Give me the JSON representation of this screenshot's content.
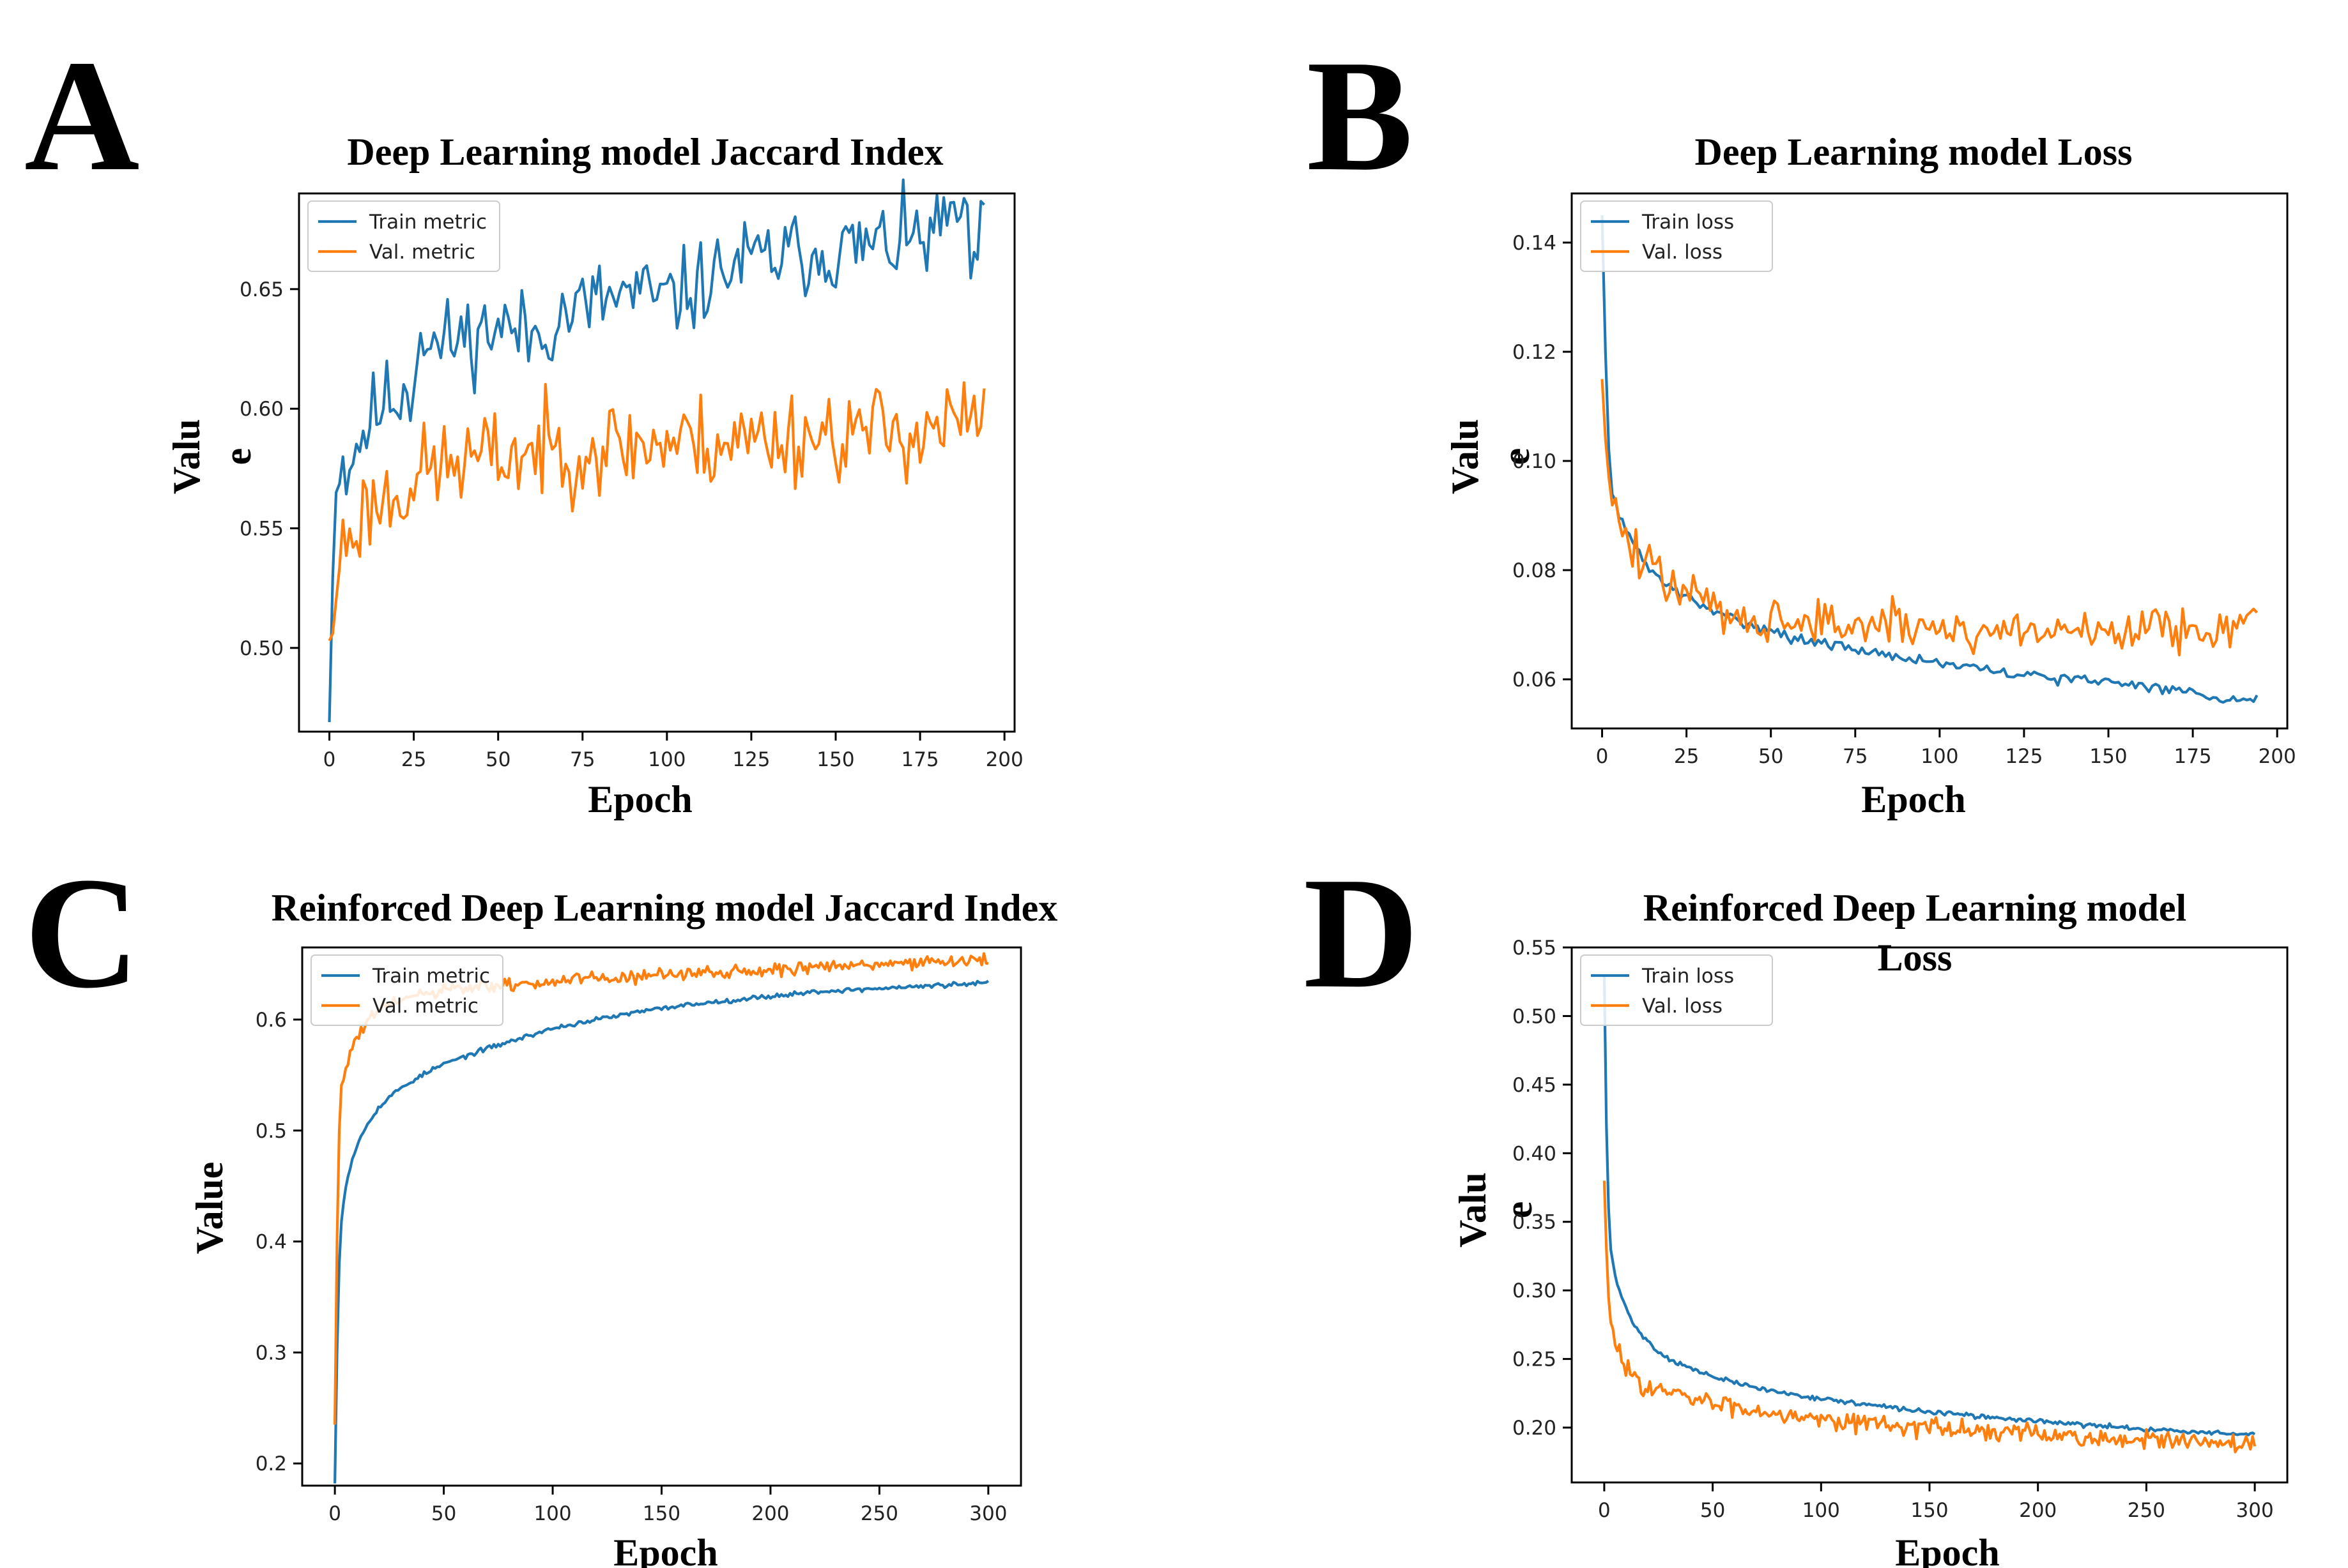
{
  "panels": [
    {
      "letter": "A",
      "title": "Deep Learning model Jaccard Index",
      "title_lines": [
        "Deep Learning model Jaccard Index"
      ],
      "ylabel_lines": [
        "Valu",
        "e"
      ],
      "xlabel": "Epoch",
      "legend": [
        "Train metric",
        "Val. metric"
      ]
    },
    {
      "letter": "B",
      "title": "Deep Learning model Loss",
      "title_lines": [
        "Deep Learning model Loss"
      ],
      "ylabel_lines": [
        "Valu",
        "e"
      ],
      "xlabel": "Epoch",
      "legend": [
        "Train loss",
        "Val. loss"
      ]
    },
    {
      "letter": "C",
      "title": "Reinforced Deep Learning model Jaccard Index",
      "title_lines": [
        "Reinforced Deep Learning model Jaccard Index"
      ],
      "ylabel_lines": [
        "Value"
      ],
      "xlabel": "Epoch",
      "legend": [
        "Train metric",
        "Val. metric"
      ]
    },
    {
      "letter": "D",
      "title": "Reinforced Deep Learning model Loss",
      "title_lines": [
        "Reinforced Deep Learning model",
        "Loss"
      ],
      "ylabel_lines": [
        "Valu",
        "e"
      ],
      "xlabel": "Epoch",
      "legend": [
        "Train loss",
        "Val. loss"
      ]
    }
  ],
  "colors": {
    "train": "#1f77b4",
    "val": "#ff7f0e",
    "axis": "#000000",
    "text": "#000000"
  },
  "chart_data": [
    {
      "type": "line",
      "title": "Deep Learning model Jaccard Index",
      "xlabel": "Epoch",
      "ylabel": "Value",
      "xlim": [
        -9,
        203
      ],
      "ylim": [
        0.465,
        0.69
      ],
      "xticks": [
        0,
        25,
        50,
        75,
        100,
        125,
        150,
        175,
        200
      ],
      "yticks": [
        0.5,
        0.55,
        0.6,
        0.65
      ],
      "ytick_labels": [
        "0.50",
        "0.55",
        "0.60",
        "0.65"
      ],
      "grid": false,
      "legend_position": "upper-left",
      "series": [
        {
          "name": "Train metric",
          "x": [
            0,
            1,
            2,
            3,
            5,
            8,
            12,
            16,
            20,
            25,
            27,
            30,
            35,
            40,
            45,
            50,
            60,
            70,
            80,
            90,
            100,
            110,
            120,
            130,
            140,
            150,
            160,
            170,
            180,
            186,
            190,
            194
          ],
          "y": [
            0.469,
            0.53,
            0.565,
            0.58,
            0.575,
            0.585,
            0.595,
            0.603,
            0.605,
            0.61,
            0.637,
            0.625,
            0.628,
            0.63,
            0.632,
            0.635,
            0.63,
            0.64,
            0.645,
            0.648,
            0.645,
            0.652,
            0.66,
            0.663,
            0.665,
            0.666,
            0.668,
            0.67,
            0.672,
            0.685,
            0.66,
            0.673
          ],
          "noise": 0.009,
          "seed": 11
        },
        {
          "name": "Val. metric",
          "x": [
            0,
            1,
            2,
            3,
            5,
            8,
            12,
            16,
            20,
            25,
            30,
            40,
            50,
            60,
            70,
            80,
            90,
            100,
            110,
            120,
            130,
            140,
            150,
            160,
            170,
            180,
            190,
            194
          ],
          "y": [
            0.503,
            0.506,
            0.52,
            0.54,
            0.545,
            0.552,
            0.56,
            0.562,
            0.565,
            0.57,
            0.575,
            0.578,
            0.58,
            0.582,
            0.583,
            0.584,
            0.585,
            0.586,
            0.586,
            0.587,
            0.588,
            0.589,
            0.59,
            0.59,
            0.591,
            0.593,
            0.594,
            0.596
          ],
          "noise": 0.01,
          "seed": 23
        }
      ]
    },
    {
      "type": "line",
      "title": "Deep Learning model Loss",
      "xlabel": "Epoch",
      "ylabel": "Value",
      "xlim": [
        -9,
        203
      ],
      "ylim": [
        0.051,
        0.149
      ],
      "xticks": [
        0,
        25,
        50,
        75,
        100,
        125,
        150,
        175,
        200
      ],
      "yticks": [
        0.06,
        0.08,
        0.1,
        0.12,
        0.14
      ],
      "ytick_labels": [
        "0.06",
        "0.08",
        "0.10",
        "0.12",
        "0.14"
      ],
      "grid": false,
      "legend_position": "upper-left",
      "series": [
        {
          "name": "Train loss",
          "x": [
            0,
            1,
            2,
            3,
            5,
            8,
            12,
            16,
            20,
            25,
            30,
            40,
            50,
            60,
            70,
            80,
            90,
            100,
            110,
            120,
            130,
            140,
            150,
            160,
            170,
            180,
            190,
            194
          ],
          "y": [
            0.145,
            0.12,
            0.102,
            0.095,
            0.09,
            0.086,
            0.082,
            0.079,
            0.077,
            0.075,
            0.073,
            0.071,
            0.069,
            0.067,
            0.066,
            0.065,
            0.064,
            0.063,
            0.062,
            0.061,
            0.0605,
            0.06,
            0.0595,
            0.059,
            0.058,
            0.057,
            0.056,
            0.0575
          ],
          "noise": 0.0005,
          "seed": 31
        },
        {
          "name": "Val. loss",
          "x": [
            0,
            1,
            2,
            3,
            5,
            8,
            12,
            16,
            20,
            25,
            30,
            40,
            50,
            60,
            70,
            80,
            90,
            100,
            110,
            120,
            130,
            140,
            150,
            160,
            170,
            180,
            190,
            194
          ],
          "y": [
            0.115,
            0.104,
            0.097,
            0.095,
            0.088,
            0.085,
            0.081,
            0.079,
            0.078,
            0.076,
            0.074,
            0.072,
            0.071,
            0.0705,
            0.07,
            0.07,
            0.0695,
            0.0695,
            0.069,
            0.069,
            0.069,
            0.069,
            0.069,
            0.0695,
            0.0695,
            0.07,
            0.07,
            0.07
          ],
          "noise": 0.0022,
          "seed": 47
        }
      ]
    },
    {
      "type": "line",
      "title": "Reinforced Deep Learning model Jaccard Index",
      "xlabel": "Epoch",
      "ylabel": "Value",
      "xlim": [
        -15,
        315
      ],
      "ylim": [
        0.18,
        0.665
      ],
      "xticks": [
        0,
        50,
        100,
        150,
        200,
        250,
        300
      ],
      "yticks": [
        0.2,
        0.3,
        0.4,
        0.5,
        0.6
      ],
      "ytick_labels": [
        "0.2",
        "0.3",
        "0.4",
        "0.5",
        "0.6"
      ],
      "grid": false,
      "legend_position": "upper-left",
      "series": [
        {
          "name": "Train metric",
          "x": [
            0,
            1,
            2,
            3,
            5,
            8,
            12,
            16,
            20,
            25,
            30,
            40,
            50,
            60,
            70,
            80,
            90,
            100,
            120,
            140,
            160,
            180,
            200,
            220,
            240,
            260,
            280,
            300
          ],
          "y": [
            0.182,
            0.3,
            0.38,
            0.42,
            0.45,
            0.475,
            0.495,
            0.51,
            0.52,
            0.53,
            0.538,
            0.55,
            0.56,
            0.567,
            0.574,
            0.58,
            0.586,
            0.592,
            0.6,
            0.607,
            0.613,
            0.617,
            0.621,
            0.625,
            0.627,
            0.629,
            0.631,
            0.633
          ],
          "noise": 0.001,
          "seed": 53
        },
        {
          "name": "Val. metric",
          "x": [
            0,
            1,
            2,
            3,
            5,
            8,
            12,
            16,
            20,
            25,
            30,
            40,
            50,
            60,
            80,
            100,
            120,
            140,
            160,
            180,
            200,
            220,
            240,
            260,
            280,
            300
          ],
          "y": [
            0.235,
            0.4,
            0.5,
            0.54,
            0.555,
            0.575,
            0.59,
            0.6,
            0.608,
            0.613,
            0.618,
            0.622,
            0.626,
            0.628,
            0.631,
            0.634,
            0.637,
            0.639,
            0.641,
            0.643,
            0.645,
            0.647,
            0.649,
            0.651,
            0.652,
            0.654
          ],
          "noise": 0.003,
          "seed": 61
        }
      ]
    },
    {
      "type": "line",
      "title": "Reinforced Deep Learning model Loss",
      "xlabel": "Epoch",
      "ylabel": "Value",
      "xlim": [
        -15,
        315
      ],
      "ylim": [
        0.16,
        0.55
      ],
      "xticks": [
        0,
        50,
        100,
        150,
        200,
        250,
        300
      ],
      "yticks": [
        0.2,
        0.25,
        0.3,
        0.35,
        0.4,
        0.45,
        0.5,
        0.55
      ],
      "ytick_labels": [
        "0.20",
        "0.25",
        "0.30",
        "0.35",
        "0.40",
        "0.45",
        "0.50",
        "0.55"
      ],
      "grid": false,
      "legend_position": "upper-left",
      "series": [
        {
          "name": "Train loss",
          "x": [
            0,
            1,
            2,
            3,
            5,
            8,
            12,
            16,
            20,
            25,
            30,
            40,
            50,
            60,
            70,
            80,
            100,
            120,
            140,
            160,
            180,
            200,
            220,
            240,
            260,
            280,
            300
          ],
          "y": [
            0.53,
            0.42,
            0.36,
            0.33,
            0.31,
            0.295,
            0.28,
            0.27,
            0.263,
            0.255,
            0.25,
            0.243,
            0.237,
            0.233,
            0.229,
            0.226,
            0.221,
            0.217,
            0.213,
            0.21,
            0.207,
            0.205,
            0.202,
            0.2,
            0.198,
            0.196,
            0.195
          ],
          "noise": 0.0008,
          "seed": 71
        },
        {
          "name": "Val. loss",
          "x": [
            0,
            1,
            2,
            3,
            5,
            8,
            12,
            16,
            20,
            25,
            30,
            40,
            50,
            60,
            70,
            80,
            100,
            120,
            140,
            160,
            180,
            200,
            220,
            240,
            260,
            280,
            300
          ],
          "y": [
            0.38,
            0.33,
            0.295,
            0.275,
            0.26,
            0.25,
            0.24,
            0.235,
            0.23,
            0.227,
            0.225,
            0.221,
            0.218,
            0.215,
            0.213,
            0.211,
            0.207,
            0.204,
            0.201,
            0.199,
            0.197,
            0.195,
            0.193,
            0.191,
            0.19,
            0.188,
            0.187
          ],
          "noise": 0.0035,
          "seed": 83
        }
      ]
    }
  ]
}
